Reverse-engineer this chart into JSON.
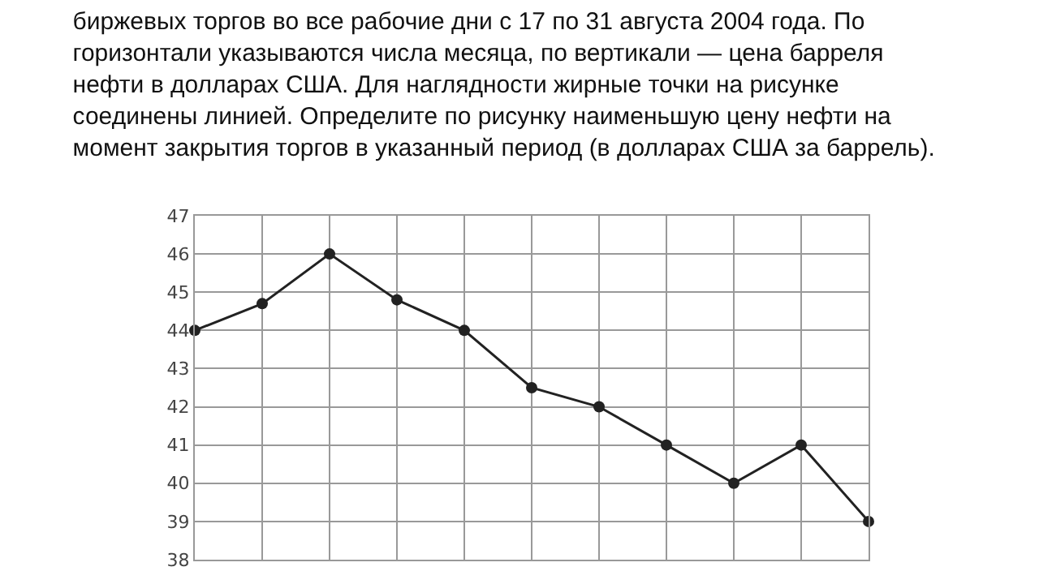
{
  "chart_data": {
    "type": "line",
    "title": "биржевых торгов во все рабочие дни с 17 по 31 августа 2004 года. По\nгоризонтали указываются числа месяца, по вертикали — цена барреля\nнефти в долларах США. Для наглядности жирные точки на рисунке\nсоединены линией. Определите по рисунку наименьшую цену нефти на\nмомент закрытия торгов в указанный период (в долларах США за баррель).",
    "categories": [
      null,
      null,
      null,
      null,
      null,
      null,
      null,
      null,
      null,
      null,
      null
    ],
    "series": [
      {
        "color": "#222222",
        "values": [
          44,
          44.7,
          46,
          44.8,
          44,
          42.5,
          42,
          41,
          40,
          41,
          39
        ]
      }
    ],
    "ylim": [
      38,
      47
    ],
    "yticks": [
      38,
      39,
      40,
      41,
      42,
      43,
      44,
      45,
      46,
      47
    ],
    "grid": true,
    "marker": "circle",
    "line_style": "solid"
  }
}
